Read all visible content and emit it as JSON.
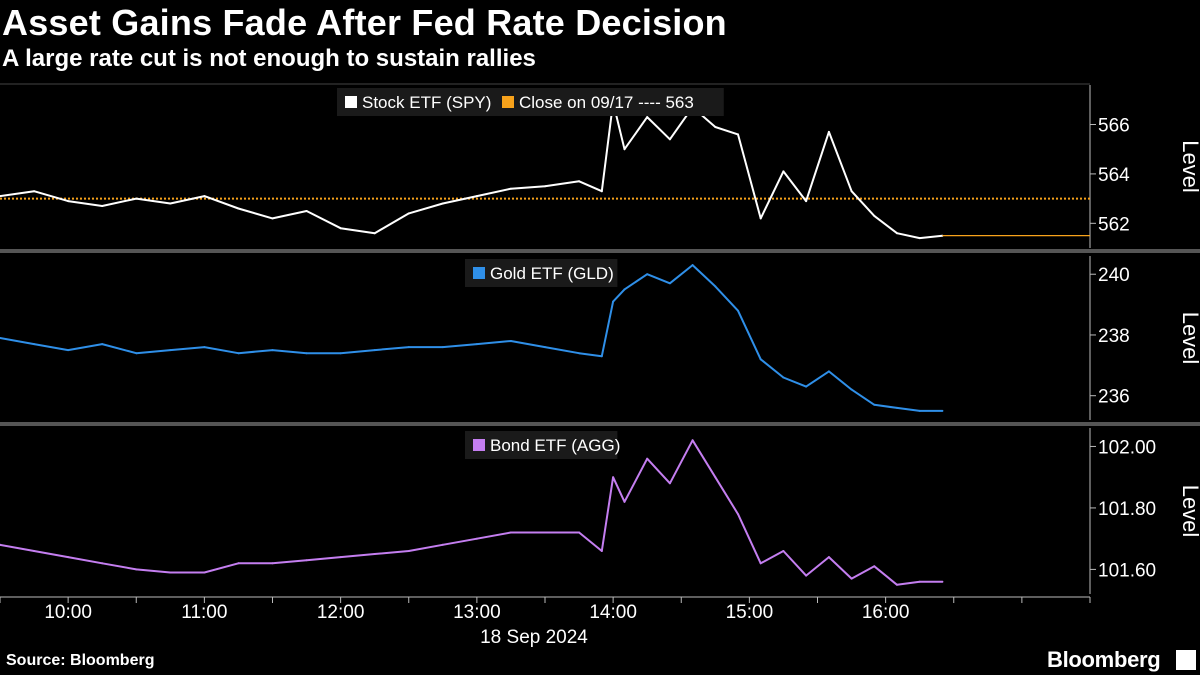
{
  "title": "Asset Gains Fade After Fed Rate Decision",
  "subtitle": "A large rate cut is not enough to sustain rallies",
  "source": "Source: Bloomberg",
  "brand": "Bloomberg",
  "chart_data": [
    {
      "type": "line",
      "ylabel": "Level",
      "ylim": [
        561.0,
        567.6
      ],
      "yticks": [
        "562",
        "564",
        "566"
      ],
      "xlim": [
        "09:30",
        "17:30"
      ],
      "legend_placement": "top-center",
      "legend": [
        "Stock ETF (SPY)",
        "Close on 09/17 ---- 563"
      ],
      "reference_line": {
        "name": "Close on 09/17",
        "value": 563.0,
        "color": "#f7a21b"
      },
      "series": [
        {
          "name": "Stock ETF (SPY)",
          "color": "#ffffff",
          "x": [
            "09:30",
            "09:45",
            "10:00",
            "10:15",
            "10:30",
            "10:45",
            "11:00",
            "11:15",
            "11:30",
            "11:45",
            "12:00",
            "12:15",
            "12:30",
            "12:45",
            "13:00",
            "13:15",
            "13:30",
            "13:45",
            "13:55",
            "14:00",
            "14:05",
            "14:15",
            "14:25",
            "14:35",
            "14:45",
            "14:55",
            "15:05",
            "15:15",
            "15:25",
            "15:35",
            "15:45",
            "15:55",
            "16:05",
            "16:15",
            "16:25"
          ],
          "values": [
            563.1,
            563.3,
            562.9,
            562.7,
            563.0,
            562.8,
            563.1,
            562.6,
            562.2,
            562.5,
            561.8,
            561.6,
            562.4,
            562.8,
            563.1,
            563.4,
            563.5,
            563.7,
            563.3,
            566.9,
            565.0,
            566.3,
            565.4,
            566.7,
            565.9,
            565.6,
            562.2,
            564.1,
            562.9,
            565.7,
            563.3,
            562.3,
            561.6,
            561.4,
            561.5
          ]
        }
      ]
    },
    {
      "type": "line",
      "ylabel": "Level",
      "ylim": [
        235.2,
        240.6
      ],
      "yticks": [
        "236",
        "238",
        "240"
      ],
      "legend_placement": "top-center",
      "legend": [
        "Gold ETF (GLD)"
      ],
      "series": [
        {
          "name": "Gold ETF (GLD)",
          "color": "#2f8fe8",
          "x": [
            "09:30",
            "09:45",
            "10:00",
            "10:15",
            "10:30",
            "10:45",
            "11:00",
            "11:15",
            "11:30",
            "11:45",
            "12:00",
            "12:15",
            "12:30",
            "12:45",
            "13:00",
            "13:15",
            "13:30",
            "13:45",
            "13:55",
            "14:00",
            "14:05",
            "14:15",
            "14:25",
            "14:35",
            "14:45",
            "14:55",
            "15:05",
            "15:15",
            "15:25",
            "15:35",
            "15:45",
            "15:55",
            "16:05",
            "16:15",
            "16:25"
          ],
          "values": [
            237.9,
            237.7,
            237.5,
            237.7,
            237.4,
            237.5,
            237.6,
            237.4,
            237.5,
            237.4,
            237.4,
            237.5,
            237.6,
            237.6,
            237.7,
            237.8,
            237.6,
            237.4,
            237.3,
            239.1,
            239.5,
            240.0,
            239.7,
            240.3,
            239.6,
            238.8,
            237.2,
            236.6,
            236.3,
            236.8,
            236.2,
            235.7,
            235.6,
            235.5,
            235.5
          ]
        }
      ]
    },
    {
      "type": "line",
      "ylabel": "Level",
      "xlabel": "18 Sep 2024",
      "ylim": [
        101.52,
        102.06
      ],
      "yticks": [
        "101.60",
        "101.80",
        "102.00"
      ],
      "xticks": [
        "10:00",
        "11:00",
        "12:00",
        "13:00",
        "14:00",
        "15:00",
        "16:00"
      ],
      "legend_placement": "top-center",
      "legend": [
        "Bond ETF (AGG)"
      ],
      "series": [
        {
          "name": "Bond ETF (AGG)",
          "color": "#c47ef0",
          "x": [
            "09:30",
            "09:45",
            "10:00",
            "10:15",
            "10:30",
            "10:45",
            "11:00",
            "11:15",
            "11:30",
            "11:45",
            "12:00",
            "12:15",
            "12:30",
            "12:45",
            "13:00",
            "13:15",
            "13:30",
            "13:45",
            "13:55",
            "14:00",
            "14:05",
            "14:15",
            "14:25",
            "14:35",
            "14:45",
            "14:55",
            "15:05",
            "15:15",
            "15:25",
            "15:35",
            "15:45",
            "15:55",
            "16:05",
            "16:15",
            "16:25"
          ],
          "values": [
            101.68,
            101.66,
            101.64,
            101.62,
            101.6,
            101.59,
            101.59,
            101.62,
            101.62,
            101.63,
            101.64,
            101.65,
            101.66,
            101.68,
            101.7,
            101.72,
            101.72,
            101.72,
            101.66,
            101.9,
            101.82,
            101.96,
            101.88,
            102.02,
            101.9,
            101.78,
            101.62,
            101.66,
            101.58,
            101.64,
            101.57,
            101.61,
            101.55,
            101.56,
            101.56
          ]
        }
      ]
    }
  ]
}
